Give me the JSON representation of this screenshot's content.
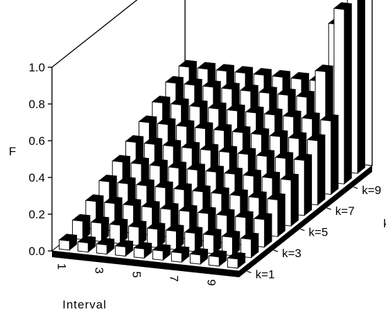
{
  "chart_data": {
    "type": "bar3d",
    "title": "",
    "xlabel": "Interval",
    "ylabel": "F",
    "zlabel": "k",
    "ylim": [
      0,
      1.0
    ],
    "yticks": [
      "0.0",
      "0.2",
      "0.4",
      "0.6",
      "0.8",
      "1.0"
    ],
    "xticks": [
      "1",
      "3",
      "5",
      "7",
      "9"
    ],
    "zticks": [
      "k=1",
      "k=3",
      "k=5",
      "k=7",
      "k=9"
    ],
    "x": [
      1,
      2,
      3,
      4,
      5,
      6,
      7,
      8,
      9,
      10
    ],
    "series": [
      {
        "k": 1,
        "values": [
          0.05,
          0.05,
          0.05,
          0.05,
          0.05,
          0.05,
          0.05,
          0.05,
          0.05,
          0.05
        ]
      },
      {
        "k": 2,
        "values": [
          0.1,
          0.1,
          0.1,
          0.1,
          0.1,
          0.1,
          0.1,
          0.1,
          0.1,
          0.1
        ]
      },
      {
        "k": 3,
        "values": [
          0.15,
          0.15,
          0.15,
          0.15,
          0.15,
          0.15,
          0.15,
          0.15,
          0.15,
          0.15
        ]
      },
      {
        "k": 4,
        "values": [
          0.2,
          0.2,
          0.2,
          0.2,
          0.2,
          0.2,
          0.2,
          0.2,
          0.2,
          0.2
        ]
      },
      {
        "k": 5,
        "values": [
          0.25,
          0.25,
          0.25,
          0.25,
          0.25,
          0.25,
          0.25,
          0.25,
          0.25,
          0.25
        ]
      },
      {
        "k": 6,
        "values": [
          0.3,
          0.3,
          0.3,
          0.3,
          0.3,
          0.3,
          0.3,
          0.3,
          0.3,
          0.3
        ]
      },
      {
        "k": 7,
        "values": [
          0.35,
          0.35,
          0.35,
          0.35,
          0.35,
          0.35,
          0.35,
          0.35,
          0.35,
          0.35
        ]
      },
      {
        "k": 8,
        "values": [
          0.4,
          0.4,
          0.4,
          0.4,
          0.4,
          0.4,
          0.4,
          0.4,
          0.4,
          0.4
        ]
      },
      {
        "k": 9,
        "values": [
          0.45,
          0.45,
          0.45,
          0.45,
          0.45,
          0.45,
          0.45,
          0.45,
          0.6,
          0.95
        ]
      },
      {
        "k": 10,
        "values": [
          0.48,
          0.48,
          0.48,
          0.48,
          0.48,
          0.48,
          0.48,
          0.48,
          0.8,
          1.0
        ]
      }
    ],
    "grid": false,
    "legend": "none",
    "colors": {
      "bar_front": "#ffffff",
      "bar_side": "#000000",
      "bar_top": "#000000",
      "axis": "#000000"
    }
  }
}
